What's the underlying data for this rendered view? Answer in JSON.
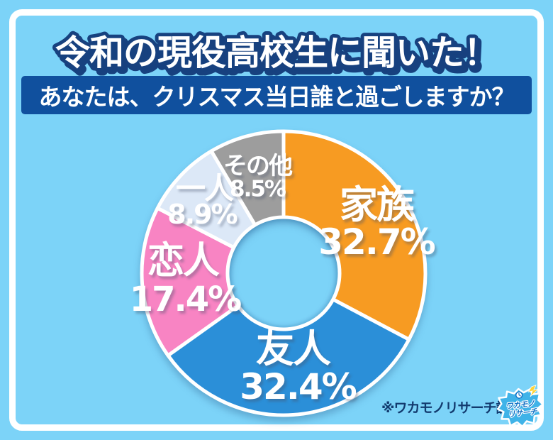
{
  "page": {
    "background_color": "#7CD3F8",
    "frame_color": "#FFFFFF"
  },
  "header": {
    "title": "令和の現役高校生に聞いた！",
    "title_text_color": "#FFFFFF",
    "title_outline_color": "#17417F",
    "question": "あなたは、クリスマス当日誰と過ごしますか？",
    "question_bar_color": "#10509E",
    "question_text_color": "#FFFFFF"
  },
  "chart_data": {
    "type": "pie",
    "subtype": "donut",
    "title": "あなたは、クリスマス当日誰と過ごしますか？",
    "start_angle_deg_from_top": 0,
    "direction": "clockwise",
    "categories": [
      "家族",
      "友人",
      "恋人",
      "一人",
      "その他"
    ],
    "values": [
      32.7,
      32.4,
      17.4,
      8.9,
      8.5
    ],
    "segments": [
      {
        "id": "family",
        "label": "家族",
        "value": 32.7,
        "display": "32.7%",
        "color": "#F79B22"
      },
      {
        "id": "friends",
        "label": "友人",
        "value": 32.4,
        "display": "32.4%",
        "color": "#2B8FD8"
      },
      {
        "id": "lover",
        "label": "恋人",
        "value": 17.4,
        "display": "17.4%",
        "color": "#F884C3"
      },
      {
        "id": "alone",
        "label": "一人",
        "value": 8.9,
        "display": "8.9%",
        "color": "#DCE8F7"
      },
      {
        "id": "other",
        "label": "その他",
        "value": 8.5,
        "display": "8.5%",
        "color": "#9D9D9D"
      }
    ],
    "separator_color": "#FFFFFF",
    "hole_shows_background": true,
    "label_text_color": "#FFFFFF"
  },
  "footer": {
    "source_note": "※ワカモノリサーチ調べ",
    "source_note_color": "#123A6E",
    "logo": {
      "line1": "ワカモノ",
      "line2": "リサーチ",
      "bubble_color": "#3FB3E8",
      "text_color": "#0E6FC4",
      "accent_color": "#FFD335"
    }
  }
}
